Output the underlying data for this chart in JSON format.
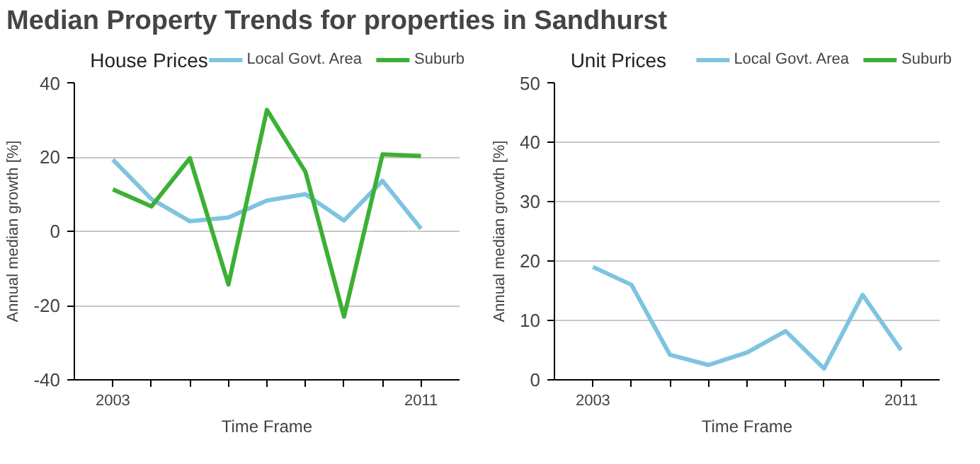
{
  "chart_data": [
    {
      "type": "line",
      "title": "Median Property Trends for properties in Sandhurst",
      "subtitle": "House Prices",
      "xlabel": "Time Frame",
      "ylabel": "Annual median growth [%]",
      "x": [
        2003,
        2004,
        2005,
        2006,
        2007,
        2008,
        2009,
        2010,
        2011
      ],
      "series": [
        {
          "name": "Local Govt. Area",
          "color": "#7ec4e0",
          "values": [
            19.3,
            8.7,
            2.7,
            3.7,
            8.3,
            10,
            2.9,
            13.6,
            0.7
          ]
        },
        {
          "name": "Suburb",
          "color": "#3cb034",
          "values": [
            11.3,
            6.7,
            19.7,
            -14.3,
            32.7,
            16,
            -23,
            20.7,
            20.3
          ]
        }
      ],
      "xlim": [
        2002,
        2012
      ],
      "xticks": [
        2003,
        {
          "value": 2004,
          "label": null
        },
        {
          "value": 2005,
          "label": null
        },
        {
          "value": 2006,
          "label": null
        },
        {
          "value": 2007,
          "label": null
        },
        {
          "value": 2008,
          "label": null
        },
        {
          "value": 2009,
          "label": null
        },
        {
          "value": 2010,
          "label": null
        },
        2011
      ],
      "ylim": [
        -40,
        40
      ],
      "yticks": [
        -40,
        -20,
        0,
        20,
        40
      ],
      "grid": "y",
      "legend": "top"
    },
    {
      "type": "line",
      "subtitle": "Unit Prices",
      "xlabel": "Time Frame",
      "ylabel": "Annual median growth [%]",
      "x": [
        2003,
        2004,
        2005,
        2006,
        2007,
        2008,
        2009,
        2010,
        2011
      ],
      "series": [
        {
          "name": "Local Govt. Area",
          "color": "#7ec4e0",
          "values": [
            19,
            16,
            4.2,
            2.5,
            4.6,
            8.2,
            1.9,
            14.3,
            5
          ]
        },
        {
          "name": "Suburb",
          "color": "#3cb034",
          "values": [
            null,
            null,
            null,
            null,
            null,
            null,
            null,
            null,
            null
          ]
        }
      ],
      "xlim": [
        2002,
        2012
      ],
      "xticks": [
        2003,
        {
          "value": 2004,
          "label": null
        },
        {
          "value": 2005,
          "label": null
        },
        {
          "value": 2006,
          "label": null
        },
        {
          "value": 2007,
          "label": null
        },
        {
          "value": 2008,
          "label": null
        },
        {
          "value": 2009,
          "label": null
        },
        {
          "value": 2010,
          "label": null
        },
        2011
      ],
      "ylim": [
        0,
        50
      ],
      "yticks": [
        0,
        10,
        20,
        30,
        40,
        50
      ],
      "grid": "y",
      "legend": "top"
    }
  ]
}
